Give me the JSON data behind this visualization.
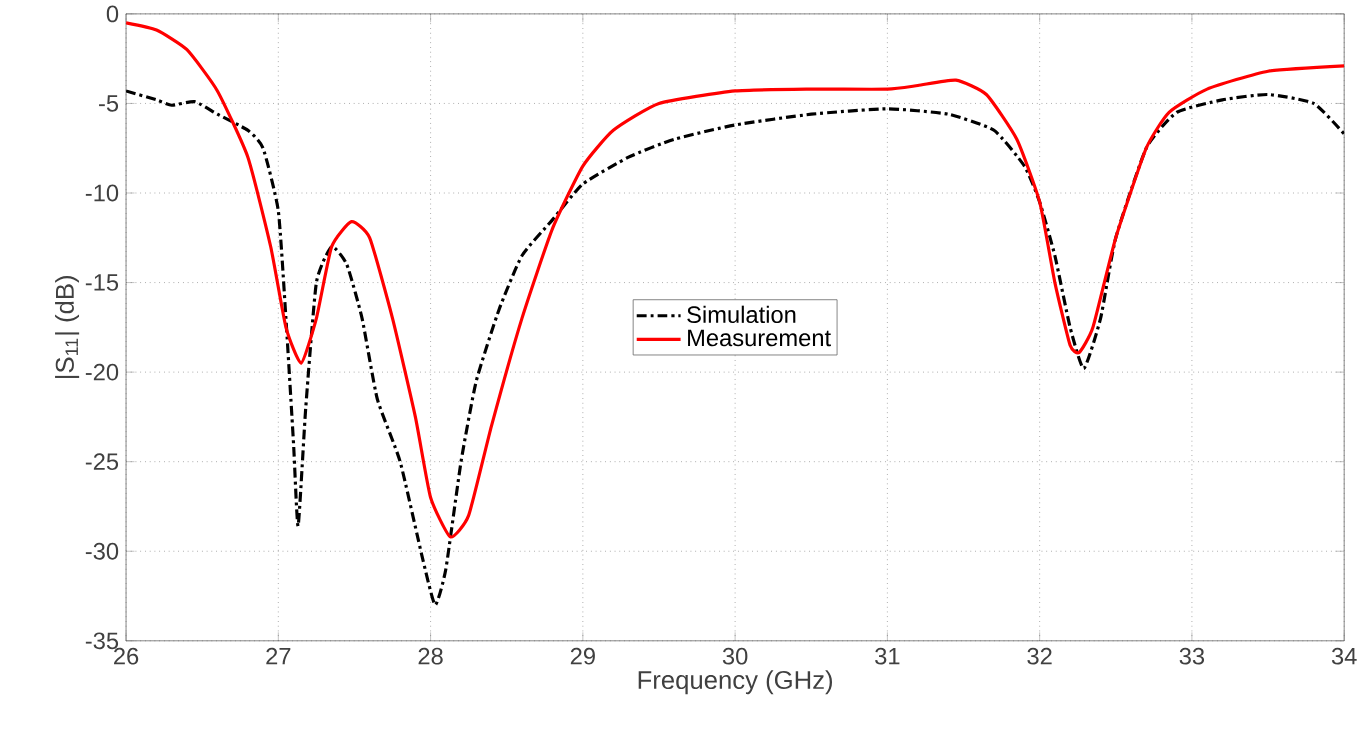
{
  "chart_data": {
    "type": "line",
    "xlabel": "Frequency (GHz)",
    "ylabel": "|S$_{11}$| (dB)",
    "xlim": [
      26,
      34
    ],
    "ylim": [
      -35,
      0
    ],
    "xticks": [
      26,
      27,
      28,
      29,
      30,
      31,
      32,
      33,
      34
    ],
    "yticks": [
      -35,
      -30,
      -25,
      -20,
      -15,
      -10,
      -5,
      0
    ],
    "grid": true,
    "legend": "center",
    "series": [
      {
        "name": "Simulation",
        "color": "#000000",
        "line_style": "dashdot",
        "x": [
          26,
          26.2,
          26.3,
          26.45,
          26.6,
          26.8,
          26.9,
          27.0,
          27.05,
          27.1,
          27.13,
          27.18,
          27.25,
          27.35,
          27.45,
          27.55,
          27.65,
          27.8,
          27.95,
          28.03,
          28.1,
          28.2,
          28.3,
          28.45,
          28.6,
          28.8,
          29,
          29.3,
          29.6,
          30,
          30.5,
          31,
          31.4,
          31.7,
          31.9,
          32.0,
          32.1,
          32.2,
          32.29,
          32.4,
          32.5,
          32.7,
          32.9,
          33.2,
          33.5,
          33.8,
          34
        ],
        "values": [
          -4.3,
          -4.8,
          -5.1,
          -4.9,
          -5.6,
          -6.5,
          -7.5,
          -11,
          -17,
          -24,
          -28.6,
          -22,
          -15,
          -13,
          -14,
          -17,
          -21.5,
          -25,
          -30.5,
          -33,
          -31,
          -25,
          -20.5,
          -16.5,
          -13.5,
          -11.5,
          -9.5,
          -8,
          -7,
          -6.2,
          -5.6,
          -5.3,
          -5.6,
          -6.5,
          -8.5,
          -10.5,
          -13.5,
          -17.5,
          -19.8,
          -17,
          -12.5,
          -7.5,
          -5.5,
          -4.8,
          -4.5,
          -5,
          -6.7
        ]
      },
      {
        "name": "Measurement",
        "color": "#ff0000",
        "line_style": "solid",
        "x": [
          26,
          26.2,
          26.4,
          26.6,
          26.8,
          26.95,
          27.05,
          27.15,
          27.25,
          27.35,
          27.48,
          27.6,
          27.75,
          27.9,
          28.0,
          28.13,
          28.25,
          28.4,
          28.6,
          28.8,
          29.0,
          29.2,
          29.5,
          30,
          30.5,
          31,
          31.2,
          31.45,
          31.65,
          31.85,
          32.0,
          32.1,
          32.2,
          32.26,
          32.35,
          32.5,
          32.7,
          32.85,
          33.1,
          33.5,
          34
        ],
        "values": [
          -0.5,
          -0.9,
          -2,
          -4.3,
          -8,
          -13,
          -17.5,
          -19.5,
          -17,
          -13,
          -11.6,
          -12.5,
          -17,
          -22.5,
          -27,
          -29.2,
          -28,
          -23,
          -17,
          -12,
          -8.5,
          -6.5,
          -5,
          -4.3,
          -4.2,
          -4.2,
          -4,
          -3.7,
          -4.5,
          -7,
          -10.5,
          -15,
          -18.5,
          -18.9,
          -17.5,
          -12.5,
          -7.5,
          -5.5,
          -4.2,
          -3.2,
          -2.9
        ]
      }
    ]
  }
}
